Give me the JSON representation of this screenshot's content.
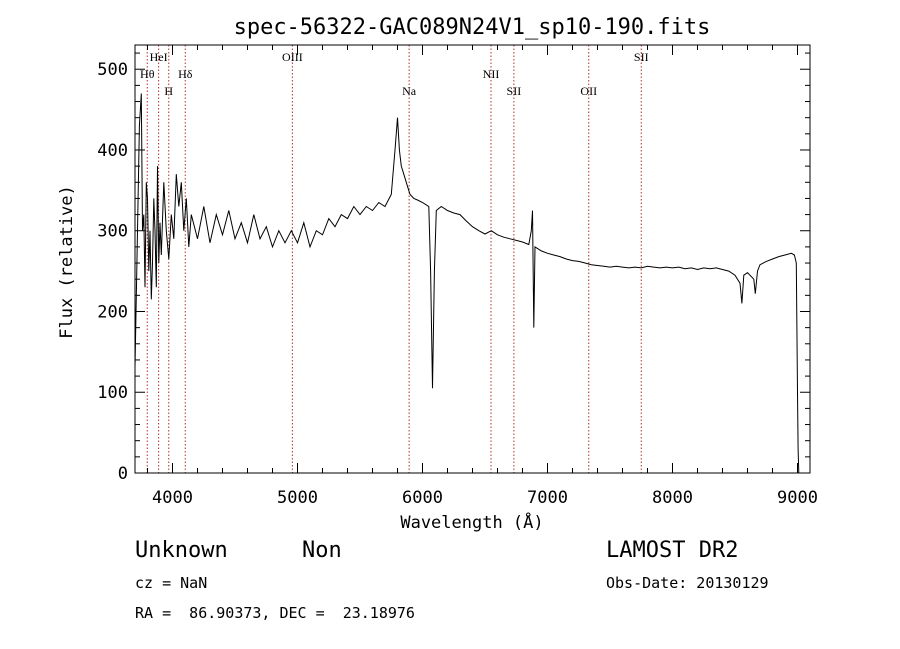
{
  "chart_data": {
    "type": "line",
    "title": "spec-56322-GAC089N24V1_sp10-190.fits",
    "xlabel": "Wavelength (Å)",
    "ylabel": "Flux (relative)",
    "xlim": [
      3700,
      9100
    ],
    "ylim": [
      0,
      530
    ],
    "x_ticks": [
      "4000",
      "5000",
      "6000",
      "7000",
      "8000",
      "9000"
    ],
    "y_ticks": [
      "0",
      "100",
      "200",
      "300",
      "400",
      "500"
    ],
    "grid": false,
    "lines": [
      {
        "label": "Hθ",
        "wavelength": 3798,
        "row": 1
      },
      {
        "label": "HeI",
        "wavelength": 3889,
        "row": 0
      },
      {
        "label": "H",
        "wavelength": 3970,
        "row": 2
      },
      {
        "label": "Hδ",
        "wavelength": 4102,
        "row": 1
      },
      {
        "label": "OIII",
        "wavelength": 4959,
        "row": 0
      },
      {
        "label": "Na",
        "wavelength": 5893,
        "row": 2
      },
      {
        "label": "NII",
        "wavelength": 6548,
        "row": 1
      },
      {
        "label": "SII",
        "wavelength": 6731,
        "row": 2
      },
      {
        "label": "OII",
        "wavelength": 7330,
        "row": 2
      },
      {
        "label": "SII",
        "wavelength": 7750,
        "row": 0
      }
    ],
    "series": [
      {
        "color": "#000000",
        "points": [
          [
            3700,
            130
          ],
          [
            3720,
            300
          ],
          [
            3735,
            430
          ],
          [
            3750,
            470
          ],
          [
            3760,
            300
          ],
          [
            3770,
            320
          ],
          [
            3780,
            230
          ],
          [
            3790,
            360
          ],
          [
            3800,
            340
          ],
          [
            3810,
            250
          ],
          [
            3820,
            300
          ],
          [
            3830,
            215
          ],
          [
            3840,
            260
          ],
          [
            3850,
            340
          ],
          [
            3860,
            300
          ],
          [
            3870,
            230
          ],
          [
            3880,
            380
          ],
          [
            3890,
            260
          ],
          [
            3900,
            310
          ],
          [
            3910,
            270
          ],
          [
            3930,
            360
          ],
          [
            3950,
            300
          ],
          [
            3970,
            265
          ],
          [
            3990,
            320
          ],
          [
            4010,
            290
          ],
          [
            4030,
            370
          ],
          [
            4050,
            330
          ],
          [
            4070,
            360
          ],
          [
            4090,
            300
          ],
          [
            4110,
            340
          ],
          [
            4130,
            280
          ],
          [
            4150,
            320
          ],
          [
            4200,
            290
          ],
          [
            4250,
            330
          ],
          [
            4300,
            285
          ],
          [
            4350,
            320
          ],
          [
            4400,
            295
          ],
          [
            4450,
            325
          ],
          [
            4500,
            290
          ],
          [
            4550,
            310
          ],
          [
            4600,
            285
          ],
          [
            4650,
            320
          ],
          [
            4700,
            290
          ],
          [
            4750,
            305
          ],
          [
            4800,
            280
          ],
          [
            4850,
            300
          ],
          [
            4900,
            285
          ],
          [
            4950,
            300
          ],
          [
            5000,
            285
          ],
          [
            5050,
            310
          ],
          [
            5100,
            280
          ],
          [
            5150,
            300
          ],
          [
            5200,
            295
          ],
          [
            5250,
            315
          ],
          [
            5300,
            305
          ],
          [
            5350,
            320
          ],
          [
            5400,
            315
          ],
          [
            5450,
            330
          ],
          [
            5500,
            320
          ],
          [
            5550,
            330
          ],
          [
            5600,
            325
          ],
          [
            5650,
            335
          ],
          [
            5700,
            330
          ],
          [
            5750,
            345
          ],
          [
            5780,
            400
          ],
          [
            5800,
            440
          ],
          [
            5815,
            400
          ],
          [
            5830,
            380
          ],
          [
            5850,
            370
          ],
          [
            5880,
            355
          ],
          [
            5900,
            345
          ],
          [
            5930,
            340
          ],
          [
            5960,
            338
          ],
          [
            6000,
            335
          ],
          [
            6030,
            332
          ],
          [
            6050,
            330
          ],
          [
            6065,
            250
          ],
          [
            6080,
            105
          ],
          [
            6095,
            250
          ],
          [
            6110,
            325
          ],
          [
            6150,
            330
          ],
          [
            6200,
            325
          ],
          [
            6250,
            322
          ],
          [
            6300,
            320
          ],
          [
            6350,
            312
          ],
          [
            6400,
            305
          ],
          [
            6450,
            300
          ],
          [
            6500,
            296
          ],
          [
            6550,
            300
          ],
          [
            6600,
            295
          ],
          [
            6650,
            292
          ],
          [
            6700,
            290
          ],
          [
            6750,
            288
          ],
          [
            6800,
            286
          ],
          [
            6850,
            283
          ],
          [
            6870,
            300
          ],
          [
            6880,
            325
          ],
          [
            6890,
            180
          ],
          [
            6900,
            280
          ],
          [
            6950,
            275
          ],
          [
            7000,
            272
          ],
          [
            7050,
            270
          ],
          [
            7100,
            268
          ],
          [
            7150,
            265
          ],
          [
            7200,
            263
          ],
          [
            7250,
            262
          ],
          [
            7300,
            260
          ],
          [
            7350,
            258
          ],
          [
            7400,
            257
          ],
          [
            7450,
            256
          ],
          [
            7500,
            255
          ],
          [
            7550,
            256
          ],
          [
            7600,
            255
          ],
          [
            7650,
            254
          ],
          [
            7700,
            255
          ],
          [
            7750,
            254
          ],
          [
            7800,
            256
          ],
          [
            7850,
            255
          ],
          [
            7900,
            254
          ],
          [
            7950,
            255
          ],
          [
            8000,
            254
          ],
          [
            8050,
            255
          ],
          [
            8100,
            253
          ],
          [
            8150,
            254
          ],
          [
            8200,
            252
          ],
          [
            8250,
            254
          ],
          [
            8300,
            253
          ],
          [
            8350,
            254
          ],
          [
            8400,
            252
          ],
          [
            8450,
            250
          ],
          [
            8500,
            245
          ],
          [
            8540,
            235
          ],
          [
            8555,
            210
          ],
          [
            8570,
            245
          ],
          [
            8600,
            248
          ],
          [
            8650,
            240
          ],
          [
            8662,
            222
          ],
          [
            8680,
            250
          ],
          [
            8700,
            258
          ],
          [
            8750,
            262
          ],
          [
            8800,
            265
          ],
          [
            8850,
            268
          ],
          [
            8900,
            270
          ],
          [
            8950,
            272
          ],
          [
            8975,
            270
          ],
          [
            8990,
            260
          ],
          [
            9000,
            100
          ],
          [
            9005,
            30
          ],
          [
            9010,
            0
          ]
        ]
      }
    ]
  },
  "info": {
    "object_type": "Unknown",
    "object_subtype": "Non",
    "survey": "LAMOST DR2",
    "redshift": "cz = NaN",
    "obs_date": "Obs-Date: 20130129",
    "coords": "RA =  86.90373, DEC =  23.18976"
  }
}
